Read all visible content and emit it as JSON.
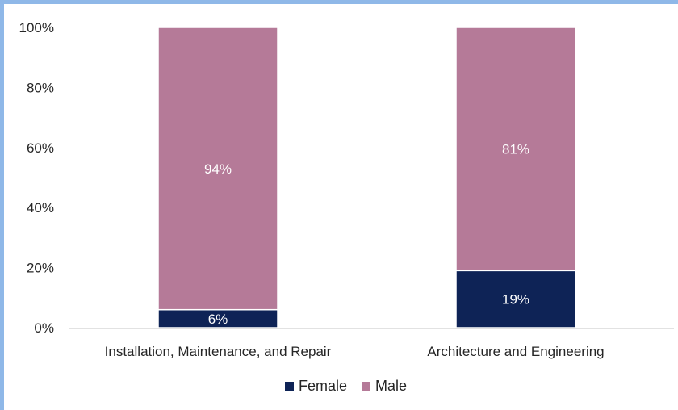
{
  "chart_data": {
    "type": "bar",
    "stacked": true,
    "categories": [
      "Installation, Maintenance, and Repair",
      "Architecture and Engineering"
    ],
    "series": [
      {
        "name": "Female",
        "values": [
          6,
          19
        ],
        "labels": [
          "6%",
          "19%"
        ],
        "color": "#0e2356"
      },
      {
        "name": "Male",
        "values": [
          94,
          81
        ],
        "labels": [
          "94%",
          "81%"
        ],
        "color": "#b57a98"
      }
    ],
    "yticks": [
      "0%",
      "20%",
      "40%",
      "60%",
      "80%",
      "100%"
    ],
    "ylim": [
      0,
      100
    ],
    "grid": false,
    "legend": "bottom",
    "title": "",
    "xlabel": "",
    "ylabel": ""
  },
  "colors": {
    "frame": "#8fb8e8",
    "axis": "#d9d9d9"
  }
}
